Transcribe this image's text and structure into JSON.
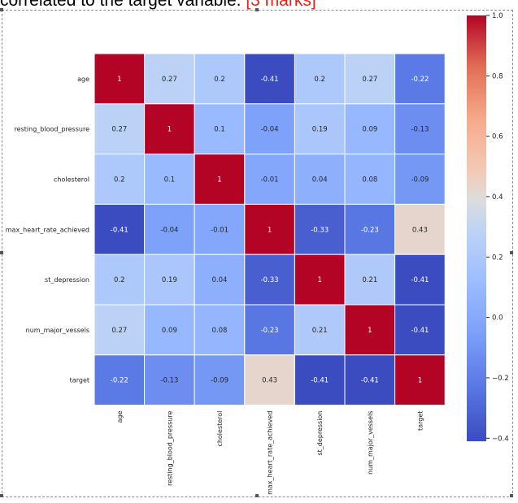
{
  "header": {
    "text": "correlated to the target variable. ",
    "marks": "[3 marks]"
  },
  "chart_data": {
    "type": "heatmap",
    "title": "",
    "xlabel": "",
    "ylabel": "",
    "variables": [
      "age",
      "resting_blood_pressure",
      "cholesterol",
      "max_heart_rate_achieved",
      "st_depression",
      "num_major_vessels",
      "target"
    ],
    "matrix": [
      [
        1,
        0.27,
        0.2,
        -0.41,
        0.2,
        0.27,
        -0.22
      ],
      [
        0.27,
        1,
        0.1,
        -0.04,
        0.19,
        0.09,
        -0.13
      ],
      [
        0.2,
        0.1,
        1,
        -0.01,
        0.04,
        0.08,
        -0.09
      ],
      [
        -0.41,
        -0.04,
        -0.01,
        1,
        -0.33,
        -0.23,
        0.43
      ],
      [
        0.2,
        0.19,
        0.04,
        -0.33,
        1,
        0.21,
        -0.41
      ],
      [
        0.27,
        0.09,
        0.08,
        -0.23,
        0.21,
        1,
        -0.41
      ],
      [
        -0.22,
        -0.13,
        -0.09,
        0.43,
        -0.41,
        -0.41,
        1
      ]
    ],
    "labels": [
      [
        "1",
        "0.27",
        "0.2",
        "-0.41",
        "0.2",
        "0.27",
        "-0.22"
      ],
      [
        "0.27",
        "1",
        "0.1",
        "-0.04",
        "0.19",
        "0.09",
        "-0.13"
      ],
      [
        "0.2",
        "0.1",
        "1",
        "-0.01",
        "0.04",
        "0.08",
        "-0.09"
      ],
      [
        "-0.41",
        "-0.04",
        "-0.01",
        "1",
        "-0.33",
        "-0.23",
        "0.43"
      ],
      [
        "0.2",
        "0.19",
        "0.04",
        "-0.33",
        "1",
        "0.21",
        "-0.41"
      ],
      [
        "0.27",
        "0.09",
        "0.08",
        "-0.23",
        "0.21",
        "1",
        "-0.41"
      ],
      [
        "-0.22",
        "-0.13",
        "-0.09",
        "0.43",
        "-0.41",
        "-0.41",
        "1"
      ]
    ],
    "colormap": "coolwarm",
    "colorbar": {
      "range": [
        -0.41,
        1.0
      ],
      "ticks": [
        1.0,
        0.8,
        0.6,
        0.4,
        0.2,
        0.0,
        -0.2,
        -0.4
      ],
      "tick_labels": [
        "1.0",
        "0.8",
        "0.6",
        "0.4",
        "0.2",
        "0.0",
        "−0.2",
        "−0.4"
      ]
    }
  }
}
